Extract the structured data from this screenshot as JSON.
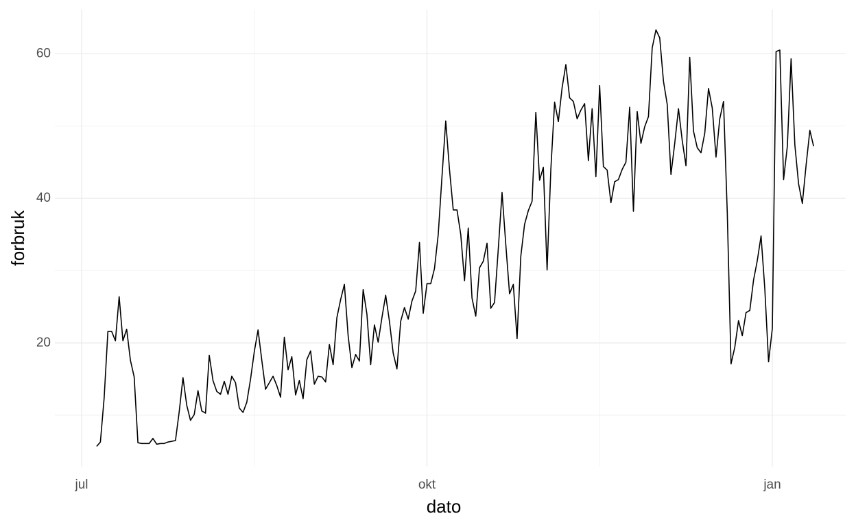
{
  "chart_data": {
    "type": "line",
    "xlabel": "dato",
    "ylabel": "forbruk",
    "categories": [
      "jul",
      null,
      null,
      null,
      null,
      null,
      null,
      null,
      null,
      null,
      null,
      null,
      null,
      null,
      null,
      null,
      null,
      null,
      null,
      null,
      null,
      null,
      null,
      null,
      null,
      null,
      null,
      null,
      null,
      null,
      null,
      null,
      null,
      null,
      null,
      null,
      null,
      null,
      null,
      null,
      null,
      null,
      null,
      null,
      null,
      null,
      null,
      null,
      null,
      null,
      null,
      null,
      null,
      null,
      null,
      null,
      null,
      null,
      null,
      null,
      null,
      null,
      null,
      null,
      null,
      null,
      null,
      null,
      null,
      null,
      null,
      null,
      null,
      null,
      null,
      null,
      null,
      null,
      null,
      null,
      null,
      null,
      null,
      null,
      null,
      null,
      null,
      null,
      null,
      null,
      null,
      null,
      "okt",
      null,
      null,
      null,
      null,
      null,
      null,
      null,
      null,
      null,
      null,
      null,
      null,
      null,
      null,
      null,
      null,
      null,
      null,
      null,
      null,
      null,
      null,
      null,
      null,
      null,
      null,
      null,
      null,
      null,
      null,
      null,
      null,
      null,
      null,
      null,
      null,
      null,
      null,
      null,
      null,
      null,
      null,
      null,
      null,
      null,
      null,
      null,
      null,
      null,
      null,
      null,
      null,
      null,
      null,
      null,
      null,
      null,
      null,
      null,
      null,
      null,
      null,
      null,
      null,
      null,
      null,
      null,
      null,
      null,
      null,
      null,
      null,
      null,
      null,
      null,
      null,
      null,
      null,
      null,
      null,
      null,
      null,
      null,
      null,
      null,
      null,
      null,
      null,
      null,
      null,
      null,
      "jan",
      null,
      null,
      null,
      null,
      null,
      null,
      null,
      null,
      null,
      null,
      null
    ],
    "values": [
      null,
      null,
      null,
      null,
      5.7,
      6.3,
      12.4,
      21.6,
      21.6,
      20.3,
      26.4,
      20.3,
      21.9,
      17.6,
      15.3,
      6.2,
      6.1,
      6.1,
      6.1,
      6.8,
      6.0,
      6.1,
      6.1,
      6.3,
      6.4,
      6.5,
      10.5,
      15.2,
      11.4,
      9.3,
      10.1,
      13.4,
      10.6,
      10.3,
      18.3,
      14.8,
      13.3,
      12.9,
      14.7,
      12.9,
      15.4,
      14.5,
      11.0,
      10.4,
      11.8,
      15.0,
      18.8,
      21.8,
      17.6,
      13.6,
      14.5,
      15.4,
      14.1,
      12.5,
      20.8,
      16.3,
      18.1,
      12.8,
      14.8,
      12.3,
      17.7,
      18.9,
      14.3,
      15.4,
      15.3,
      14.6,
      19.8,
      17.0,
      23.5,
      26.0,
      28.1,
      21.0,
      16.6,
      18.4,
      17.5,
      27.4,
      24.0,
      17.0,
      22.5,
      20.1,
      23.5,
      26.6,
      23.0,
      18.6,
      16.4,
      23.0,
      24.9,
      23.3,
      25.8,
      27.2,
      33.9,
      24.1,
      28.2,
      28.2,
      30.3,
      35.0,
      43.0,
      50.7,
      44.0,
      38.4,
      38.4,
      35.0,
      28.6,
      35.9,
      26.2,
      23.7,
      30.4,
      31.3,
      33.8,
      24.8,
      25.6,
      33.0,
      40.8,
      33.6,
      26.8,
      28.1,
      20.6,
      32.0,
      36.4,
      38.3,
      39.6,
      51.9,
      42.5,
      44.3,
      30.1,
      44.0,
      53.3,
      50.6,
      55.3,
      58.5,
      53.9,
      53.4,
      51.0,
      52.2,
      53.1,
      45.2,
      52.4,
      43.0,
      55.6,
      44.4,
      43.9,
      39.4,
      42.3,
      42.6,
      44.0,
      45.0,
      52.6,
      38.2,
      52.0,
      47.6,
      49.9,
      51.3,
      60.8,
      63.3,
      62.2,
      56.2,
      53.0,
      43.3,
      47.6,
      52.4,
      48.0,
      44.5,
      59.5,
      49.3,
      47.0,
      46.3,
      49.0,
      55.2,
      52.5,
      45.7,
      51.0,
      53.4,
      38.0,
      17.1,
      19.4,
      23.1,
      21.0,
      24.2,
      24.5,
      28.7,
      31.4,
      34.8,
      27.5,
      17.4,
      22.0,
      60.3,
      60.5,
      42.6,
      47.2,
      59.3,
      47.4,
      42.0,
      39.3,
      44.6,
      49.4,
      47.2
    ],
    "color": "#000000",
    "ylim": [
      2.9,
      66.1
    ],
    "yticks": [
      20,
      40,
      60
    ],
    "grid": true
  }
}
